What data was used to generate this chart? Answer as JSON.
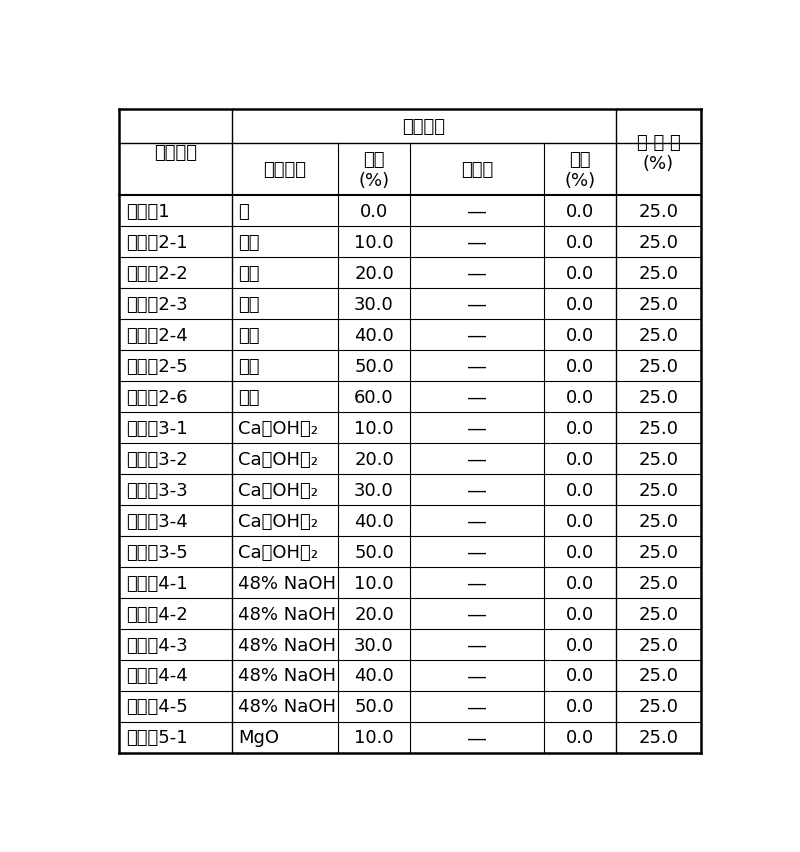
{
  "header_row1_label": "化学条件",
  "header_col0": "比较例号",
  "header_col5": "混 合 水\n(%)",
  "sub_headers": [
    "碗性试剂",
    "用量\n(%)",
    "固定剂",
    "用量\n(%)"
  ],
  "rows": [
    [
      "比较例1",
      "－",
      "0.0",
      "―",
      "0.0",
      "25.0"
    ],
    [
      "比较例2-1",
      "水泥",
      "10.0",
      "―",
      "0.0",
      "25.0"
    ],
    [
      "比较例2-2",
      "水泥",
      "20.0",
      "―",
      "0.0",
      "25.0"
    ],
    [
      "比较例2-3",
      "水泥",
      "30.0",
      "―",
      "0.0",
      "25.0"
    ],
    [
      "比较例2-4",
      "水泥",
      "40.0",
      "―",
      "0.0",
      "25.0"
    ],
    [
      "比较例2-5",
      "水泥",
      "50.0",
      "―",
      "0.0",
      "25.0"
    ],
    [
      "比较例2-6",
      "水泥",
      "60.0",
      "―",
      "0.0",
      "25.0"
    ],
    [
      "比较例3-1",
      "Ca（OH）₂",
      "10.0",
      "―",
      "0.0",
      "25.0"
    ],
    [
      "比较例3-2",
      "Ca（OH）₂",
      "20.0",
      "―",
      "0.0",
      "25.0"
    ],
    [
      "比较例3-3",
      "Ca（OH）₂",
      "30.0",
      "―",
      "0.0",
      "25.0"
    ],
    [
      "比较例3-4",
      "Ca（OH）₂",
      "40.0",
      "―",
      "0.0",
      "25.0"
    ],
    [
      "比较例3-5",
      "Ca（OH）₂",
      "50.0",
      "―",
      "0.0",
      "25.0"
    ],
    [
      "比较例4-1",
      "48% NaOH",
      "10.0",
      "―",
      "0.0",
      "25.0"
    ],
    [
      "比较例4-2",
      "48% NaOH",
      "20.0",
      "―",
      "0.0",
      "25.0"
    ],
    [
      "比较例4-3",
      "48% NaOH",
      "30.0",
      "―",
      "0.0",
      "25.0"
    ],
    [
      "比较例4-4",
      "48% NaOH",
      "40.0",
      "―",
      "0.0",
      "25.0"
    ],
    [
      "比较例4-5",
      "48% NaOH",
      "50.0",
      "―",
      "0.0",
      "25.0"
    ],
    [
      "比较例5-1",
      "MgO",
      "10.0",
      "―",
      "0.0",
      "25.0"
    ]
  ],
  "col_widths_rel": [
    1.65,
    1.55,
    1.05,
    1.95,
    1.05,
    1.25
  ],
  "figsize": [
    8.0,
    8.53
  ],
  "dpi": 100,
  "bg_color": "#ffffff",
  "line_color": "#000000",
  "text_color": "#000000",
  "font_size": 13,
  "header_font_size": 13
}
